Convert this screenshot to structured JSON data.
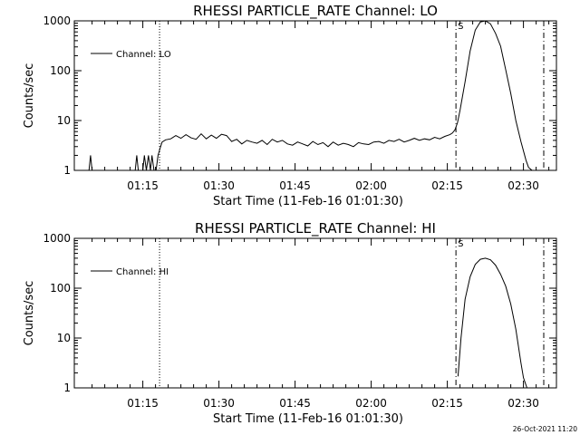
{
  "footer": {
    "timestamp": "26-Oct-2021 11:20"
  },
  "chart_data": [
    {
      "type": "line",
      "title": "RHESSI PARTICLE_RATE Channel: LO",
      "xlabel": "Start Time (11-Feb-16 01:01:30)",
      "ylabel": "Counts/sec",
      "yscale": "log",
      "ylim": [
        1,
        1000
      ],
      "xlim_min_after_start": [
        0,
        95
      ],
      "y_ticks": [
        1,
        10,
        100,
        1000
      ],
      "y_tick_labels": [
        "1",
        "10",
        "100",
        "1000"
      ],
      "x_ticks_min_after_start": [
        13.5,
        28.5,
        43.5,
        58.5,
        73.5,
        88.5
      ],
      "x_tick_labels": [
        "01:15",
        "01:30",
        "01:45",
        "02:00",
        "02:15",
        "02:30"
      ],
      "legend": {
        "label": "Channel: LO",
        "position": "top-left"
      },
      "markers": [
        {
          "x": 16.8,
          "style": "dotted"
        },
        {
          "x": 75.2,
          "style": "dashdot",
          "label": "S"
        },
        {
          "x": 92.5,
          "style": "dashdot"
        }
      ],
      "series": [
        {
          "name": "Channel: LO",
          "x": [
            0,
            2.9,
            3.2,
            3.5,
            12,
            12.3,
            12.6,
            13.5,
            13.8,
            14.2,
            14.6,
            15,
            15.3,
            15.7,
            16.1,
            16.5,
            17,
            17.3,
            18,
            19,
            20,
            21,
            22,
            23,
            24,
            25,
            26,
            27,
            28,
            29,
            30,
            31,
            32,
            33,
            34,
            35,
            36,
            37,
            38,
            39,
            40,
            41,
            42,
            43,
            44,
            45,
            46,
            47,
            48,
            49,
            50,
            51,
            52,
            53,
            54,
            55,
            56,
            57,
            58,
            59,
            60,
            61,
            62,
            63,
            64,
            65,
            66,
            67,
            68,
            69,
            70,
            71,
            72,
            73,
            74,
            74.5,
            75,
            75.5,
            76,
            77,
            78,
            79,
            80,
            81,
            82,
            83,
            84,
            84.5,
            85,
            86,
            87,
            88,
            89,
            89.5,
            90.2
          ],
          "y": [
            1,
            1,
            2,
            1,
            1,
            2,
            1,
            1,
            2,
            1,
            2,
            1,
            2,
            1,
            1,
            2,
            3,
            3.7,
            4.1,
            4.3,
            5,
            4.4,
            5.2,
            4.5,
            4.2,
            5.4,
            4.3,
            5.1,
            4.4,
            5.3,
            5.0,
            3.8,
            4.2,
            3.4,
            4.0,
            3.7,
            3.5,
            4.0,
            3.3,
            4.2,
            3.7,
            4.0,
            3.4,
            3.2,
            3.7,
            3.4,
            3.1,
            3.8,
            3.3,
            3.6,
            3.0,
            3.7,
            3.2,
            3.5,
            3.3,
            3.0,
            3.6,
            3.4,
            3.3,
            3.7,
            3.8,
            3.5,
            4.0,
            3.8,
            4.2,
            3.7,
            4.0,
            4.4,
            4.0,
            4.3,
            4.1,
            4.6,
            4.3,
            4.8,
            5.2,
            5.6,
            6.5,
            9,
            16,
            60,
            250,
            650,
            950,
            1000,
            870,
            560,
            310,
            180,
            105,
            35,
            10,
            3.8,
            1.6,
            1.15,
            1
          ]
        }
      ]
    },
    {
      "type": "line",
      "title": "RHESSI PARTICLE_RATE Channel: HI",
      "xlabel": "Start Time (11-Feb-16 01:01:30)",
      "ylabel": "Counts/sec",
      "yscale": "log",
      "ylim": [
        1,
        1000
      ],
      "xlim_min_after_start": [
        0,
        95
      ],
      "y_ticks": [
        1,
        10,
        100,
        1000
      ],
      "y_tick_labels": [
        "1",
        "10",
        "100",
        "1000"
      ],
      "x_ticks_min_after_start": [
        13.5,
        28.5,
        43.5,
        58.5,
        73.5,
        88.5
      ],
      "x_tick_labels": [
        "01:15",
        "01:30",
        "01:45",
        "02:00",
        "02:15",
        "02:30"
      ],
      "legend": {
        "label": "Channel: HI",
        "position": "top-left"
      },
      "markers": [
        {
          "x": 16.8,
          "style": "dotted"
        },
        {
          "x": 75.2,
          "style": "dashdot",
          "label": "S"
        },
        {
          "x": 92.5,
          "style": "dashdot"
        }
      ],
      "series": [
        {
          "name": "Channel: HI",
          "x": [
            75.6,
            76.2,
            77,
            78,
            79,
            80,
            81,
            82,
            83,
            84,
            85,
            86,
            87,
            88,
            88.5,
            89.2
          ],
          "y": [
            1.7,
            10,
            60,
            170,
            300,
            380,
            400,
            370,
            290,
            190,
            110,
            48,
            15,
            3.2,
            1.6,
            1
          ]
        }
      ]
    }
  ]
}
